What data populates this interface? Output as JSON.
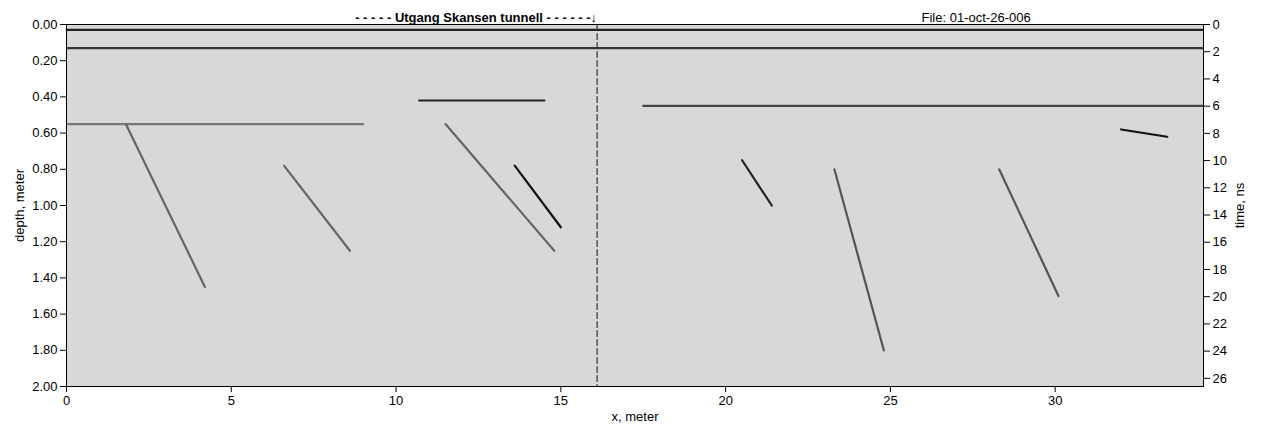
{
  "chart_data": {
    "type": "radargram",
    "annotations": [
      {
        "text": "- - - - - Utgang Skansen tunnell - - - - - -↓",
        "x": 16.1,
        "anchor": "end",
        "weight": "bold"
      },
      {
        "text": "File: 01-oct-26-006",
        "x": 27.6,
        "anchor": "middle",
        "weight": "normal"
      }
    ],
    "xlabel": "x, meter",
    "ylabel": "depth, meter",
    "y2label": "time, ns",
    "xlim": [
      0,
      34.5
    ],
    "xticks": [
      0,
      5,
      10,
      15,
      20,
      25,
      30
    ],
    "ylim": [
      0,
      2
    ],
    "yticks": [
      {
        "value": 0,
        "label": "0.00"
      },
      {
        "value": 0.2,
        "label": "0.20"
      },
      {
        "value": 0.4,
        "label": "0.40"
      },
      {
        "value": 0.6,
        "label": "0.60"
      },
      {
        "value": 0.8,
        "label": "0.80"
      },
      {
        "value": 1.0,
        "label": "1.00"
      },
      {
        "value": 1.2,
        "label": "1.20"
      },
      {
        "value": 1.4,
        "label": "1.40"
      },
      {
        "value": 1.6,
        "label": "1.60"
      },
      {
        "value": 1.8,
        "label": "1.80"
      },
      {
        "value": 2.0,
        "label": "2.00"
      }
    ],
    "y2lim": [
      0,
      26.6
    ],
    "y2ticks": [
      0,
      2,
      4,
      6,
      8,
      10,
      12,
      14,
      16,
      18,
      20,
      22,
      24,
      26
    ],
    "grid": false,
    "features": [
      {
        "x": [
          0,
          34.5
        ],
        "y": [
          0.03,
          0.03
        ],
        "color": "#222222",
        "line_style": "solid"
      },
      {
        "x": [
          0,
          34.5
        ],
        "y": [
          0.13,
          0.13
        ],
        "color": "#333333",
        "line_style": "solid"
      },
      {
        "x": [
          0,
          9
        ],
        "y": [
          0.55,
          0.55
        ],
        "color": "#777777",
        "line_style": "solid"
      },
      {
        "x": [
          10.7,
          14.5
        ],
        "y": [
          0.42,
          0.42
        ],
        "color": "#222222",
        "line_style": "solid"
      },
      {
        "x": [
          17.5,
          34.5
        ],
        "y": [
          0.45,
          0.45
        ],
        "color": "#444444",
        "line_style": "solid"
      },
      {
        "x": [
          13.6,
          15.0
        ],
        "y": [
          0.78,
          1.12
        ],
        "color": "#111111",
        "line_style": "solid"
      },
      {
        "x": [
          11.5,
          14.8
        ],
        "y": [
          0.55,
          1.25
        ],
        "color": "#666666",
        "line_style": "solid"
      },
      {
        "x": [
          1.8,
          4.2
        ],
        "y": [
          0.55,
          1.45
        ],
        "color": "#666666",
        "line_style": "solid"
      },
      {
        "x": [
          6.6,
          8.6
        ],
        "y": [
          0.78,
          1.25
        ],
        "color": "#666666",
        "line_style": "solid"
      },
      {
        "x": [
          20.5,
          21.4
        ],
        "y": [
          0.75,
          1.0
        ],
        "color": "#222222",
        "line_style": "solid"
      },
      {
        "x": [
          23.3,
          24.8
        ],
        "y": [
          0.8,
          1.8
        ],
        "color": "#555555",
        "line_style": "solid"
      },
      {
        "x": [
          28.3,
          30.1
        ],
        "y": [
          0.8,
          1.5
        ],
        "color": "#555555",
        "line_style": "solid"
      },
      {
        "x": [
          32.0,
          33.4
        ],
        "y": [
          0.58,
          0.62
        ],
        "color": "#111111",
        "line_style": "solid"
      },
      {
        "x": [
          16.1,
          16.1
        ],
        "y": [
          0,
          2
        ],
        "color": "#333333",
        "line_style": "dashed"
      }
    ]
  }
}
